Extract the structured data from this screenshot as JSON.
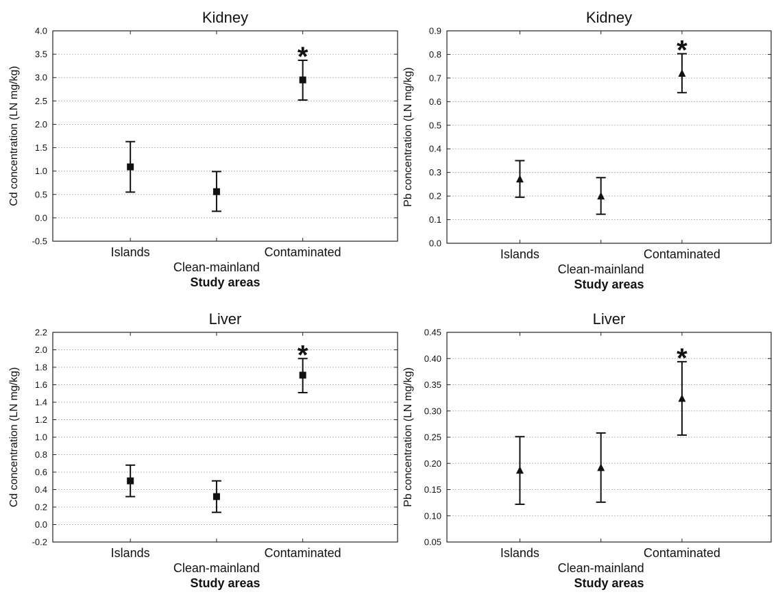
{
  "figure": {
    "colors": {
      "ink": "#111111",
      "grid": "#b8b8b8",
      "frame": "#222222",
      "background": "#ffffff"
    }
  },
  "chart_data": [
    {
      "type": "scatter",
      "title": "Kidney",
      "xlabel": "Study areas",
      "ylabel": "Cd concentration (LN mg/kg)",
      "categories": [
        "Islands",
        "Clean-mainland",
        "Contaminated"
      ],
      "ylim": [
        -0.5,
        4.0
      ],
      "yticks": [
        "-0.5",
        "0.0",
        "0.5",
        "1.0",
        "1.5",
        "2.0",
        "2.5",
        "3.0",
        "3.5",
        "4.0"
      ],
      "grid": "horizontal dotted",
      "marker": "square",
      "series": [
        {
          "values": [
            1.09,
            0.56,
            2.95
          ],
          "lower": [
            0.55,
            0.14,
            2.52
          ],
          "upper": [
            1.63,
            0.99,
            3.37
          ]
        }
      ],
      "annotations": [
        {
          "text": "*",
          "category": "Contaminated"
        }
      ]
    },
    {
      "type": "scatter",
      "title": "Kidney",
      "xlabel": "Study areas",
      "ylabel": "Pb concentration (LN mg/kg)",
      "categories": [
        "Islands",
        "Clean-mainland",
        "Contaminated"
      ],
      "ylim": [
        0.0,
        0.9
      ],
      "yticks": [
        "0.0",
        "0.1",
        "0.2",
        "0.3",
        "0.4",
        "0.5",
        "0.6",
        "0.7",
        "0.8",
        "0.9"
      ],
      "grid": "horizontal dotted",
      "marker": "triangle",
      "series": [
        {
          "values": [
            0.272,
            0.2,
            0.72
          ],
          "lower": [
            0.195,
            0.123,
            0.638
          ],
          "upper": [
            0.35,
            0.278,
            0.803
          ]
        }
      ],
      "annotations": [
        {
          "text": "*",
          "category": "Contaminated"
        }
      ]
    },
    {
      "type": "scatter",
      "title": "Liver",
      "xlabel": "Study areas",
      "ylabel": "Cd concentration (LN mg/kg)",
      "categories": [
        "Islands",
        "Clean-mainland",
        "Contaminated"
      ],
      "ylim": [
        -0.2,
        2.2
      ],
      "yticks": [
        "-0.2",
        "0.0",
        "0.2",
        "0.4",
        "0.6",
        "0.8",
        "1.0",
        "1.2",
        "1.4",
        "1.6",
        "1.8",
        "2.0",
        "2.2"
      ],
      "grid": "horizontal dotted",
      "marker": "square",
      "series": [
        {
          "values": [
            0.5,
            0.32,
            1.71
          ],
          "lower": [
            0.32,
            0.14,
            1.51
          ],
          "upper": [
            0.68,
            0.5,
            1.9
          ]
        }
      ],
      "annotations": [
        {
          "text": "*",
          "category": "Contaminated"
        }
      ]
    },
    {
      "type": "scatter",
      "title": "Liver",
      "xlabel": "Study areas",
      "ylabel": "Pb concentration (LN mg/kg)",
      "categories": [
        "Islands",
        "Clean-mainland",
        "Contaminated"
      ],
      "ylim": [
        0.05,
        0.45
      ],
      "yticks": [
        "0.05",
        "0.10",
        "0.15",
        "0.20",
        "0.25",
        "0.30",
        "0.35",
        "0.40",
        "0.45"
      ],
      "grid": "horizontal dotted",
      "marker": "triangle",
      "series": [
        {
          "values": [
            0.187,
            0.192,
            0.324
          ],
          "lower": [
            0.122,
            0.126,
            0.254
          ],
          "upper": [
            0.251,
            0.258,
            0.394
          ]
        }
      ],
      "annotations": [
        {
          "text": "*",
          "category": "Contaminated"
        }
      ]
    }
  ]
}
